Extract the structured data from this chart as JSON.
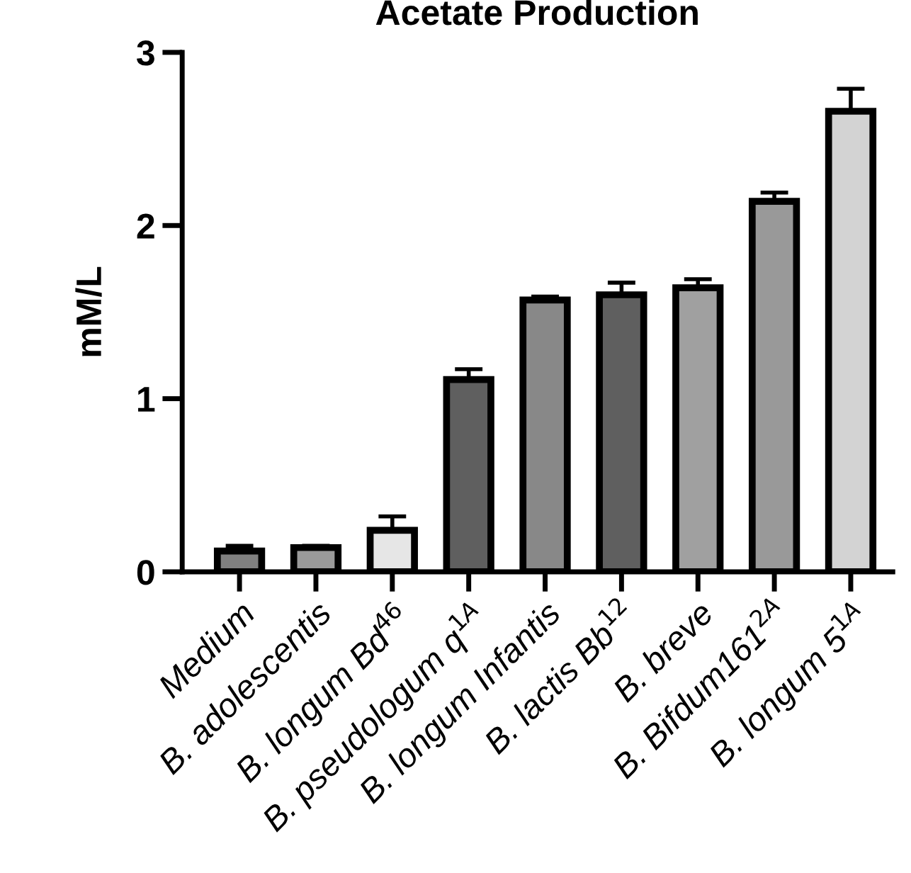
{
  "chart_data": {
    "type": "bar",
    "title": "Acetate Production",
    "ylabel": "mM/L",
    "categories": [
      "Medium",
      "B. adolescentis",
      "B. longum Bd$^{46}$",
      "B. pseudologum q$^{1A}$",
      "B. longum Infantis",
      "B. lactis Bb$^{12}$",
      "B. breve",
      "B. Bifdum161$^{2A}$",
      "B. longum 5$^{1A}$"
    ],
    "values": [
      0.12,
      0.14,
      0.24,
      1.11,
      1.57,
      1.6,
      1.64,
      2.14,
      2.66
    ],
    "errors": [
      [
        0.12,
        0.15
      ],
      [
        0.14,
        0.15
      ],
      [
        0.24,
        0.32
      ],
      [
        1.11,
        1.17
      ],
      [
        1.57,
        1.59
      ],
      [
        1.6,
        1.67
      ],
      [
        1.64,
        1.69
      ],
      [
        2.14,
        2.19
      ],
      [
        2.66,
        2.79
      ]
    ],
    "colors": [
      "#808080",
      "#9a9a9a",
      "#e6e6e6",
      "#5f5f5f",
      "#888888",
      "#5f5f5f",
      "#a0a0a0",
      "#999999",
      "#d3d3d3"
    ],
    "ylim": [
      0,
      3
    ],
    "yticks": [
      0,
      1,
      2,
      3
    ],
    "grid": false,
    "legend": false
  }
}
